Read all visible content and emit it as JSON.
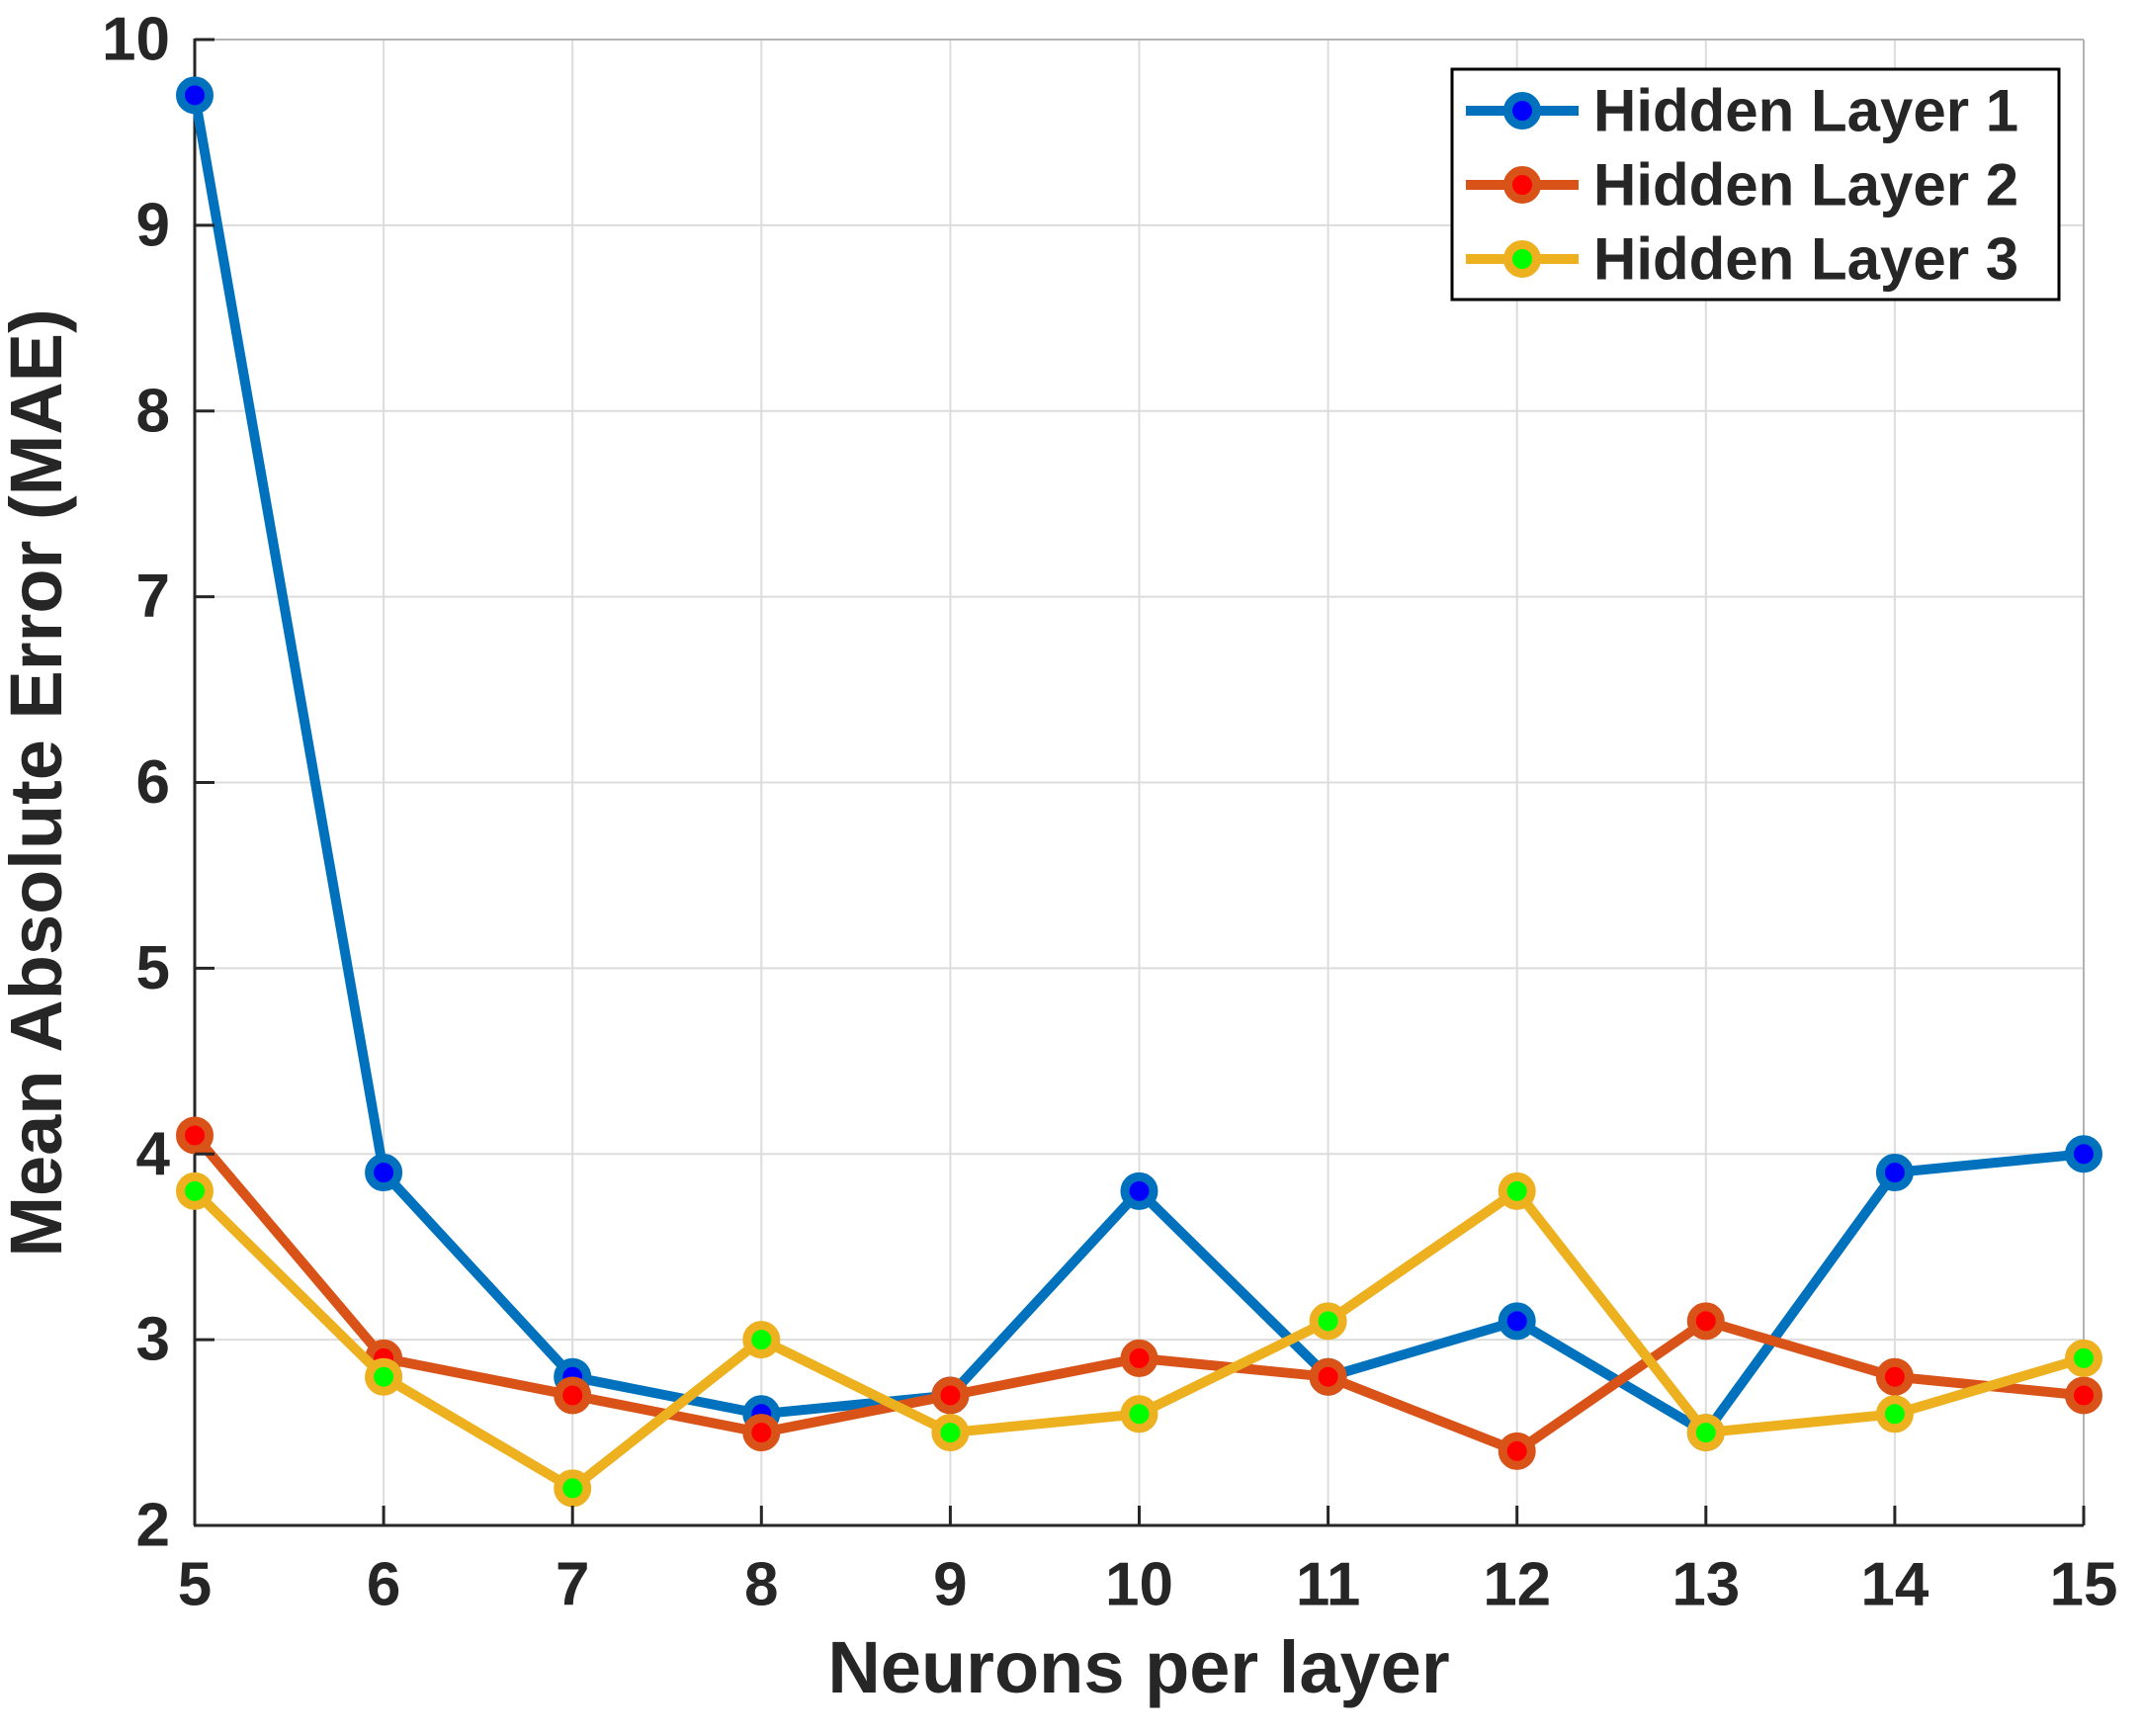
{
  "chart_data": {
    "type": "line",
    "title": "",
    "xlabel": "Neurons per layer",
    "ylabel": "Mean Absolute Error (MAE)",
    "x": [
      5,
      6,
      7,
      8,
      9,
      10,
      11,
      12,
      13,
      14,
      15
    ],
    "xlim": [
      5,
      15
    ],
    "ylim": [
      2,
      10
    ],
    "xticks": [
      5,
      6,
      7,
      8,
      9,
      10,
      11,
      12,
      13,
      14,
      15
    ],
    "yticks": [
      2,
      3,
      4,
      5,
      6,
      7,
      8,
      9,
      10
    ],
    "grid": true,
    "legend": {
      "position": "top-right",
      "border_color": "#000000",
      "background": "#ffffff"
    },
    "axis_colors": {
      "spine": "#262626",
      "box_far": "#b3b3b3",
      "grid": "#dcdcdc",
      "tick_label": "#262626"
    },
    "series": [
      {
        "name": "Hidden Layer 1",
        "line_color": "#0072BD",
        "marker_fill": "#0000FF",
        "values": [
          9.7,
          3.9,
          2.8,
          2.6,
          2.7,
          3.8,
          2.8,
          3.1,
          2.5,
          3.9,
          4.0
        ]
      },
      {
        "name": "Hidden Layer 2",
        "line_color": "#D95319",
        "marker_fill": "#FF0000",
        "values": [
          4.1,
          2.9,
          2.7,
          2.5,
          2.7,
          2.9,
          2.8,
          2.4,
          3.1,
          2.8,
          2.7
        ]
      },
      {
        "name": "Hidden Layer 3",
        "line_color": "#EDB120",
        "marker_fill": "#00FF00",
        "values": [
          3.8,
          2.8,
          2.2,
          3.0,
          2.5,
          2.6,
          3.1,
          3.8,
          2.5,
          2.6,
          2.9
        ]
      }
    ]
  }
}
